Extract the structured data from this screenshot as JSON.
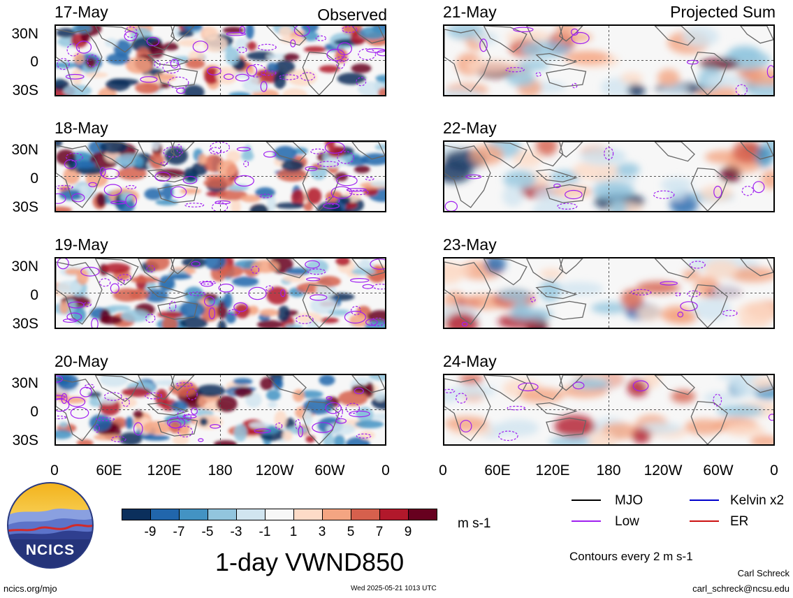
{
  "left_column": {
    "mode_label": "Observed",
    "dates": [
      "17-May",
      "18-May",
      "19-May",
      "20-May"
    ]
  },
  "right_column": {
    "mode_label": "Projected Sum",
    "dates": [
      "21-May",
      "22-May",
      "23-May",
      "24-May"
    ]
  },
  "lat_labels": [
    "30N",
    "0",
    "30S"
  ],
  "lon_labels": [
    "0",
    "60E",
    "120E",
    "180",
    "120W",
    "60W",
    "0"
  ],
  "colorbar": {
    "tick_labels": [
      "-9",
      "-7",
      "-5",
      "-3",
      "-1",
      "1",
      "3",
      "5",
      "7",
      "9"
    ],
    "colors": [
      "#0b2f5c",
      "#2166ac",
      "#4393c3",
      "#92c5de",
      "#d1e5f0",
      "#f7f7f7",
      "#fddbc7",
      "#f4a582",
      "#d6604d",
      "#b2182b",
      "#67001f"
    ],
    "units": "m s-1"
  },
  "title": "1-day VWND850",
  "legend": {
    "items": [
      {
        "label": "MJO",
        "color": "#000000"
      },
      {
        "label": "Kelvin x2",
        "color": "#0000cc"
      },
      {
        "label": "Low",
        "color": "#a020f0"
      },
      {
        "label": "ER",
        "color": "#cc1111"
      }
    ],
    "contour_note": "Contours every 2 m s-1"
  },
  "logo_text": "NCICS",
  "footer": {
    "site": "ncics.org/mjo",
    "timestamp": "Wed 2025-05-21 1013 UTC",
    "author": "Carl Schreck",
    "email": "carl_schreck@ncsu.edu"
  }
}
